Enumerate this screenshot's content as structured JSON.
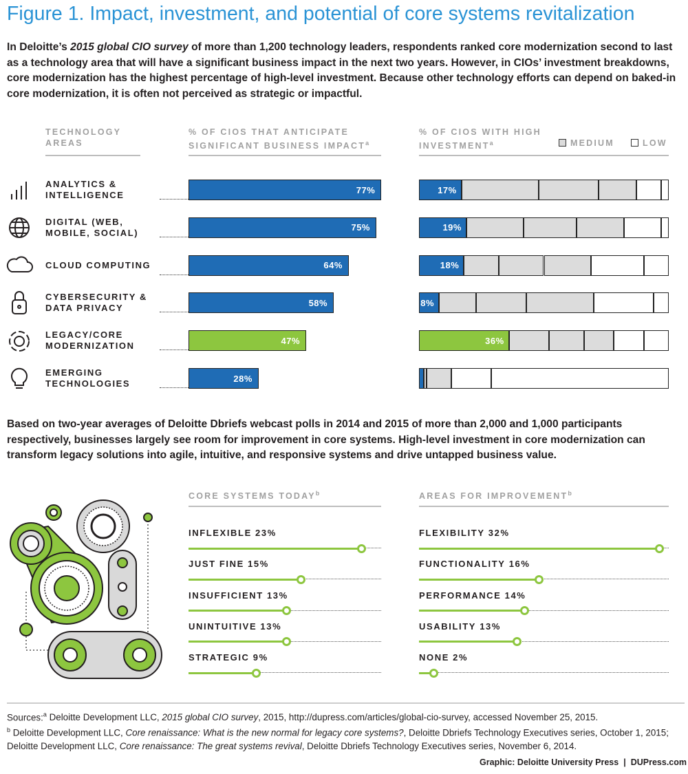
{
  "title": "Figure 1. Impact, investment, and potential of core systems revitalization",
  "intro": [
    "In Deloitte’s ",
    {
      "italic": "2015 global CIO survey"
    },
    " of more than 1,200 technology leaders, respondents ranked core modernization second to last as a technology area that will have a significant business impact in the next two years. However, in CIOs’ investment breakdowns, core modernization has the highest percentage of high-level investment. Because other technology efforts can depend on baked-in core modernization, it is often not perceived as strategic or impactful."
  ],
  "chart_data": [
    {
      "type": "bar",
      "category_header": "TECHNOLOGY AREAS",
      "title": "% OF CIOS THAT ANTICIPATE SIGNIFICANT BUSINESS IMPACT",
      "title_note": "a",
      "categories": [
        "ANALYTICS & INTELLIGENCE",
        "DIGITAL (WEB, MOBILE, SOCIAL)",
        "CLOUD COMPUTING",
        "CYBERSECURITY & DATA PRIVACY",
        "LEGACY/CORE MODERNIZATION",
        "EMERGING TECHNOLOGIES"
      ],
      "values": [
        77,
        75,
        64,
        58,
        47,
        28
      ],
      "value_labels": [
        "77%",
        "75%",
        "64%",
        "58%",
        "47%",
        "28%"
      ],
      "colors": [
        "#1f6cb5",
        "#1f6cb5",
        "#1f6cb5",
        "#1f6cb5",
        "#8dc63f",
        "#1f6cb5"
      ],
      "xlim": [
        0,
        100
      ]
    },
    {
      "type": "stacked_bar",
      "title": "% OF CIOS WITH HIGH INVESTMENT",
      "title_note": "a",
      "legend": [
        {
          "label": "MEDIUM",
          "color": "#dcdcdc"
        },
        {
          "label": "LOW",
          "color": "#ffffff"
        }
      ],
      "series": [
        {
          "colors": [
            "#1f6cb5",
            "#1f6cb5",
            "#1f6cb5",
            "#1f6cb5",
            "#8dc63f",
            "#1f6cb5"
          ],
          "values": [
            17,
            19,
            18,
            8,
            36,
            2
          ],
          "value_labels": [
            "17%",
            "19%",
            "18%",
            "8%",
            "36%",
            null
          ]
        },
        {
          "color": "#dcdcdc",
          "values": [
            31,
            23,
            14,
            15,
            16,
            1
          ]
        },
        {
          "color": "#dcdcdc",
          "values": [
            24,
            21,
            18,
            20,
            14,
            10
          ]
        },
        {
          "color": "#dcdcdc",
          "values": [
            15,
            19,
            19,
            27,
            12,
            0
          ]
        },
        {
          "color": "#ffffff",
          "values": [
            10,
            15,
            21,
            24,
            12,
            16
          ]
        },
        {
          "color": "#ffffff",
          "values": [
            3,
            3,
            10,
            6,
            10,
            71
          ]
        }
      ],
      "xlim": [
        0,
        100
      ]
    },
    {
      "type": "lollipop",
      "title": "CORE SYSTEMS TODAY",
      "title_note": "b",
      "categories": [
        "INFLEXIBLE",
        "JUST FINE",
        "INSUFFICIENT",
        "UNINTUITIVE",
        "STRATEGIC"
      ],
      "values": [
        23,
        15,
        13,
        13,
        9
      ],
      "value_labels": [
        "23%",
        "15%",
        "13%",
        "13%",
        "9%"
      ],
      "color": "#8dc63f",
      "xlim": [
        0,
        35
      ]
    },
    {
      "type": "lollipop",
      "title": "AREAS FOR IMPROVEMENT",
      "title_note": "b",
      "categories": [
        "FLEXIBILITY",
        "FUNCTIONALITY",
        "PERFORMANCE",
        "USABILITY",
        "NONE"
      ],
      "values": [
        32,
        16,
        14,
        13,
        2
      ],
      "value_labels": [
        "32%",
        "16%",
        "14%",
        "13%",
        "2%"
      ],
      "color": "#8dc63f",
      "xlim": [
        0,
        35
      ]
    }
  ],
  "body": "Based on two-year averages of Deloitte Dbriefs webcast polls in 2014 and 2015 of more than 2,000 and 1,000 participants respectively, businesses largely see room for improvement in core systems. High-level investment in core modernization can transform legacy solutions into agile, intuitive, and responsive systems and drive untapped business value.",
  "sources": {
    "label": "Sources:",
    "items": [
      {
        "note": "a",
        "text": [
          " Deloitte Development LLC, ",
          {
            "italic": "2015 global CIO survey"
          },
          ", 2015, http://dupress.com/articles/global-cio-survey, accessed November 25, 2015."
        ]
      },
      {
        "note": "b",
        "text": [
          " Deloitte Development LLC, ",
          {
            "italic": "Core renaissance: What is the new normal for legacy core systems?"
          },
          ", Deloitte Dbriefs Technology Executives series, October 1, 2015; Deloitte Development LLC, ",
          {
            "italic": "Core renaissance: The great systems revival"
          },
          ", Deloitte Dbriefs Technology Executives series, November 6, 2014."
        ]
      }
    ]
  },
  "credit": [
    "Graphic: Deloitte University Press",
    "|",
    "DUPress.com"
  ]
}
